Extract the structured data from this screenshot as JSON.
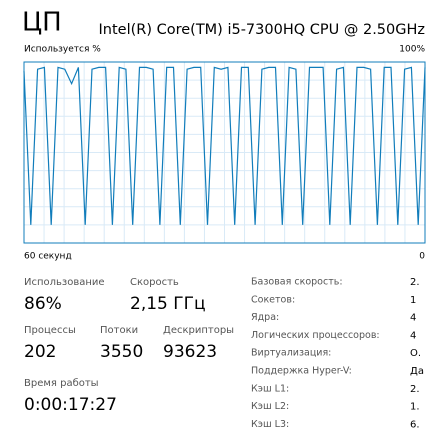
{
  "header": {
    "title": "ЦП",
    "cpu_name": "Intel(R) Core(TM) i5-7300HQ CPU @ 2.50GHz"
  },
  "chart_data": {
    "type": "line",
    "y_label": "Используется %",
    "y_max_label": "100%",
    "x_label_left": "60 секунд",
    "x_label_right": "0",
    "ylim": [
      0,
      100
    ],
    "grid": true,
    "color": "#117dbb",
    "values": [
      95,
      10,
      96,
      97,
      10,
      97,
      96,
      88,
      97,
      10,
      96,
      97,
      97,
      10,
      97,
      96,
      10,
      97,
      97,
      96,
      10,
      97,
      97,
      10,
      96,
      97,
      97,
      10,
      97,
      96,
      97,
      10,
      97,
      97,
      10,
      96,
      97,
      97,
      10,
      97,
      96,
      10,
      97,
      97,
      97,
      10,
      96,
      97,
      10,
      97,
      97,
      96,
      10,
      97,
      97,
      10,
      96,
      97,
      10,
      97
    ]
  },
  "stats": [
    {
      "label": "Использование",
      "value": "86%"
    },
    {
      "label": "Скорость",
      "value": "2,15 ГГц"
    },
    {
      "label": "Процессы",
      "value": "202"
    },
    {
      "label": "Потоки",
      "value": "3550"
    },
    {
      "label": "Дескрипторы",
      "value": "93623"
    },
    {
      "label": "Время работы",
      "value": "0:00:17:27"
    }
  ],
  "details": [
    {
      "label": "Базовая скорость:",
      "value": "2."
    },
    {
      "label": "Сокетов:",
      "value": "1"
    },
    {
      "label": "Ядра:",
      "value": "4"
    },
    {
      "label": "Логических процессоров:",
      "value": "4"
    },
    {
      "label": "Виртуализация:",
      "value": "О."
    },
    {
      "label": "Поддержка Hyper-V:",
      "value": "Да"
    },
    {
      "label": "Кэш L1:",
      "value": "2."
    },
    {
      "label": "Кэш L2:",
      "value": "1."
    },
    {
      "label": "Кэш L3:",
      "value": "6."
    }
  ]
}
